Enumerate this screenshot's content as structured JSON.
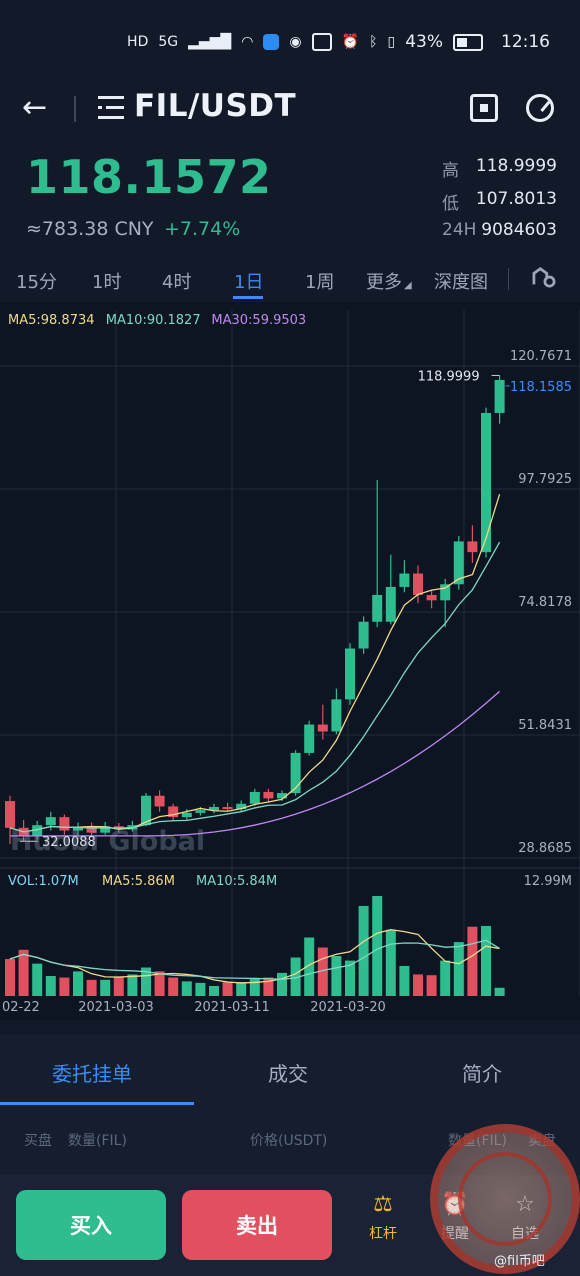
{
  "status_bar": {
    "network_badges": [
      "HD",
      "5G"
    ],
    "battery": "43%",
    "time": "12:16"
  },
  "header": {
    "pair": "FIL/USDT",
    "back_icon": "arrow-left-icon",
    "menu_icon": "list-menu-icon",
    "scan_icon": "scan-icon",
    "gauge_icon": "gauge-icon"
  },
  "price": {
    "last": "118.1572",
    "cny": "≈783.38 CNY",
    "change": "+7.74%",
    "stats": [
      {
        "label": "高",
        "value": "118.9999"
      },
      {
        "label": "低",
        "value": "107.8013"
      },
      {
        "label": "24H",
        "value": "9084603"
      }
    ]
  },
  "tabs": {
    "items": [
      "15分",
      "1时",
      "4时",
      "1日",
      "1周",
      "更多",
      "深度图"
    ],
    "active": "1日"
  },
  "chart_data": {
    "type": "candlestick",
    "interval": "1日",
    "ma_labels": [
      {
        "text": "MA5:98.8734",
        "color": "#f0d98a"
      },
      {
        "text": "MA10:90.1827",
        "color": "#7ed8c2"
      },
      {
        "text": "MA30:59.9503",
        "color": "#c087f2"
      }
    ],
    "price_axis": [
      "120.7671",
      "97.7925",
      "74.8178",
      "51.8431",
      "28.8685"
    ],
    "max_label": "118.9999",
    "min_label": "32.0088",
    "current_label": "118.1585",
    "x_labels": [
      "02-22",
      "2021-03-03",
      "2021-03-11",
      "2021-03-20"
    ],
    "volume_labels": [
      {
        "text": "VOL:1.07M",
        "color": "#7ed8f2"
      },
      {
        "text": "MA5:5.86M",
        "color": "#f0d98a"
      },
      {
        "text": "MA10:5.84M",
        "color": "#7ed8c2"
      }
    ],
    "volume_max": "12.99M",
    "candles": [
      {
        "o": 39.5,
        "c": 34.5,
        "h": 40.5,
        "l": 31.5,
        "v": 4.8
      },
      {
        "o": 34.5,
        "c": 33.0,
        "h": 36.0,
        "l": 32.0,
        "v": 6.0
      },
      {
        "o": 33.0,
        "c": 35.0,
        "h": 35.8,
        "l": 32.3,
        "v": 4.2
      },
      {
        "o": 35.0,
        "c": 36.5,
        "h": 37.5,
        "l": 34.0,
        "v": 2.6
      },
      {
        "o": 36.5,
        "c": 34.0,
        "h": 37.0,
        "l": 33.2,
        "v": 2.4
      },
      {
        "o": 34.0,
        "c": 34.6,
        "h": 35.5,
        "l": 33.0,
        "v": 3.2
      },
      {
        "o": 34.6,
        "c": 33.6,
        "h": 35.5,
        "l": 33.0,
        "v": 2.1
      },
      {
        "o": 33.6,
        "c": 34.8,
        "h": 35.6,
        "l": 33.2,
        "v": 2.1
      },
      {
        "o": 34.8,
        "c": 34.2,
        "h": 35.4,
        "l": 33.6,
        "v": 2.5
      },
      {
        "o": 34.2,
        "c": 35.0,
        "h": 35.8,
        "l": 33.8,
        "v": 2.8
      },
      {
        "o": 35.0,
        "c": 40.5,
        "h": 41.0,
        "l": 34.8,
        "v": 3.7
      },
      {
        "o": 40.5,
        "c": 38.5,
        "h": 41.5,
        "l": 37.5,
        "v": 3.2
      },
      {
        "o": 38.5,
        "c": 36.5,
        "h": 39.0,
        "l": 35.8,
        "v": 2.4
      },
      {
        "o": 36.5,
        "c": 37.3,
        "h": 38.0,
        "l": 36.0,
        "v": 1.9
      },
      {
        "o": 37.3,
        "c": 37.8,
        "h": 38.4,
        "l": 36.8,
        "v": 1.7
      },
      {
        "o": 37.8,
        "c": 38.4,
        "h": 39.0,
        "l": 37.2,
        "v": 1.3
      },
      {
        "o": 38.4,
        "c": 38.0,
        "h": 39.2,
        "l": 37.6,
        "v": 1.8
      },
      {
        "o": 38.0,
        "c": 39.0,
        "h": 39.6,
        "l": 37.5,
        "v": 1.8
      },
      {
        "o": 39.0,
        "c": 41.2,
        "h": 41.8,
        "l": 38.6,
        "v": 2.2
      },
      {
        "o": 41.2,
        "c": 40.0,
        "h": 41.8,
        "l": 39.2,
        "v": 2.4
      },
      {
        "o": 40.0,
        "c": 41.0,
        "h": 41.5,
        "l": 39.5,
        "v": 3.0
      },
      {
        "o": 41.0,
        "c": 48.5,
        "h": 49.0,
        "l": 40.5,
        "v": 5.0
      },
      {
        "o": 48.5,
        "c": 53.8,
        "h": 54.5,
        "l": 48.0,
        "v": 7.6
      },
      {
        "o": 53.8,
        "c": 52.5,
        "h": 57.5,
        "l": 51.0,
        "v": 6.3
      },
      {
        "o": 52.5,
        "c": 58.5,
        "h": 60.5,
        "l": 52.0,
        "v": 5.2
      },
      {
        "o": 58.5,
        "c": 68.0,
        "h": 69.0,
        "l": 57.5,
        "v": 4.6
      },
      {
        "o": 68.0,
        "c": 73.0,
        "h": 74.0,
        "l": 67.0,
        "v": 11.7
      },
      {
        "o": 73.0,
        "c": 78.0,
        "h": 99.5,
        "l": 72.0,
        "v": 12.99
      },
      {
        "o": 73.0,
        "c": 79.5,
        "h": 85.5,
        "l": 72.5,
        "v": 8.6
      },
      {
        "o": 79.5,
        "c": 82.0,
        "h": 84.5,
        "l": 78.5,
        "v": 3.9
      },
      {
        "o": 82.0,
        "c": 78.0,
        "h": 83.5,
        "l": 76.5,
        "v": 2.8
      },
      {
        "o": 78.0,
        "c": 77.0,
        "h": 79.0,
        "l": 75.5,
        "v": 2.7
      },
      {
        "o": 77.0,
        "c": 80.0,
        "h": 81.0,
        "l": 72.0,
        "v": 4.6
      },
      {
        "o": 80.0,
        "c": 88.0,
        "h": 89.0,
        "l": 79.0,
        "v": 7.0
      },
      {
        "o": 88.0,
        "c": 86.0,
        "h": 91.0,
        "l": 84.0,
        "v": 9.0
      },
      {
        "o": 86.0,
        "c": 112.0,
        "h": 113.0,
        "l": 85.0,
        "v": 9.1
      },
      {
        "o": 112.0,
        "c": 118.16,
        "h": 118.9999,
        "l": 110.0,
        "v": 1.07
      }
    ]
  },
  "lower_tabs": {
    "items": [
      "委托挂单",
      "成交",
      "简介"
    ],
    "active": "委托挂单"
  },
  "orderbook_header": {
    "buy": "买盘",
    "qty_left": "数量(FIL)",
    "price": "价格(USDT)",
    "qty_right": "数量(FIL)",
    "sell": "卖盘"
  },
  "bottom_bar": {
    "buy": "买入",
    "sell": "卖出",
    "items": [
      {
        "label": "杠杆",
        "icon": "lever-icon"
      },
      {
        "label": "提醒",
        "icon": "alert-icon"
      },
      {
        "label": "自选",
        "icon": "star-icon"
      }
    ],
    "credit": "@fil币吧"
  },
  "colors": {
    "up": "#2fbd8f",
    "down": "#e0505f",
    "accent": "#3c8cf5",
    "background": "#121a2a"
  }
}
